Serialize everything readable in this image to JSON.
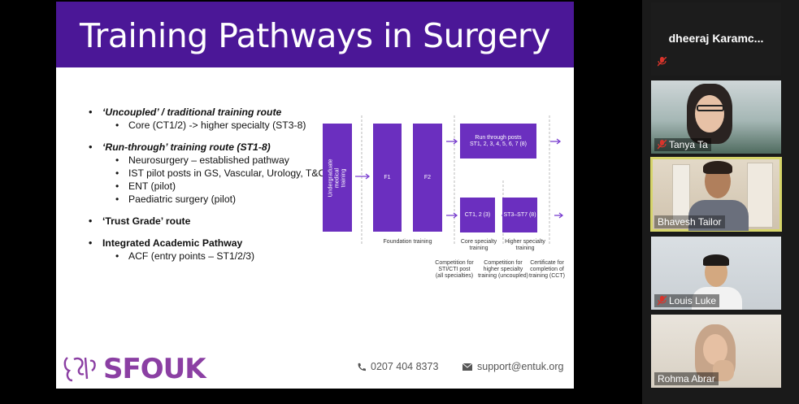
{
  "slide": {
    "title": "Training Pathways in Surgery",
    "bullets": [
      {
        "text": "‘Uncoupled’ / traditional training route",
        "style": "ital",
        "sub": [
          "Core (CT1/2) -> higher specialty (ST3-8)"
        ]
      },
      {
        "text": "‘Run-through’ training route (ST1-8)",
        "style": "ital",
        "sub": [
          "Neurosurgery – established pathway",
          "IST pilot posts in GS, Vascular, Urology, T&O",
          "ENT (pilot)",
          "Paediatric surgery (pilot)"
        ]
      },
      {
        "text": "‘Trust Grade’ route",
        "style": "bold",
        "sub": []
      },
      {
        "text": "Integrated Academic Pathway",
        "style": "bold",
        "sub": [
          "ACF (entry points – ST1/2/3)"
        ]
      }
    ],
    "diagram": {
      "undergrad": "Undergraduate medical training",
      "f1": "F1",
      "f2": "F2",
      "runthrough_line1": "Run through posts",
      "runthrough_line2": "ST1, 2, 3, 4, 5, 6, 7 (8)",
      "ct": "CT1, 2 (3)",
      "st": "ST3–ST7 (8)",
      "foundation_label": "Foundation training",
      "core_label_1": "Core specialty",
      "core_label_2": "training",
      "higher_label_1": "Higher specialty",
      "higher_label_2": "training",
      "comp1": [
        "Competition for",
        "STI/CTI post",
        "(all specialties)"
      ],
      "comp2": [
        "Competition for",
        "higher specialty",
        "training (uncoupled)"
      ],
      "comp3": [
        "Certificate for",
        "completion of",
        "training (CCT)"
      ]
    },
    "footer": {
      "logo": "SFOUK",
      "phone": "0207 404 8373",
      "email": "support@entuk.org"
    }
  },
  "participants": [
    {
      "name": "dheeraj  Karamc...",
      "muted": true,
      "video": false
    },
    {
      "name": "Tanya Ta",
      "muted": true,
      "video": true
    },
    {
      "name": "Bhavesh Tailor",
      "muted": false,
      "video": true,
      "active": true
    },
    {
      "name": "Louis Luke",
      "muted": true,
      "video": true
    },
    {
      "name": "Rohma Abrar",
      "muted": false,
      "video": true
    }
  ],
  "colors": {
    "purple": "#4b1797",
    "box": "#6b2fbf",
    "active_border": "#d6d56a",
    "mute_red": "#d9342b"
  }
}
